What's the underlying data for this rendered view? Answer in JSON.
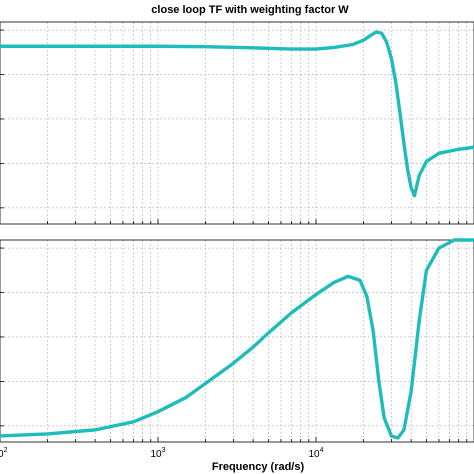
{
  "chart_data": {
    "type": "line",
    "title": "close loop TF with weighting factor W",
    "xlabel": "Frequency  (rad/s)",
    "x_scale": "log",
    "xlim": [
      100,
      100000
    ],
    "x_tick_labels": [
      {
        "value": 100,
        "base": "10",
        "exp": "2"
      },
      {
        "value": 1000,
        "base": "10",
        "exp": "3"
      },
      {
        "value": 10000,
        "base": "10",
        "exp": "4"
      }
    ],
    "grid": true,
    "line_color": "#1fbcbc",
    "panels": [
      {
        "name": "magnitude",
        "ylim": [
          0,
          1
        ],
        "y_ticks": [
          0.08,
          0.3,
          0.52,
          0.74,
          0.96
        ],
        "series": [
          {
            "x": [
              100,
              300,
              1000,
              2000,
              4000,
              7000,
              10000,
              13000,
              17000,
              20000,
              22000,
              24000,
              26000,
              28000,
              30000,
              32000,
              34000,
              36000,
              38000,
              40000,
              42000,
              45000,
              50000,
              60000,
              80000,
              100000
            ],
            "y": [
              0.88,
              0.88,
              0.88,
              0.878,
              0.872,
              0.866,
              0.866,
              0.874,
              0.888,
              0.91,
              0.932,
              0.95,
              0.945,
              0.9,
              0.82,
              0.7,
              0.55,
              0.4,
              0.27,
              0.18,
              0.14,
              0.24,
              0.31,
              0.35,
              0.37,
              0.38
            ]
          }
        ]
      },
      {
        "name": "phase",
        "ylim": [
          0,
          1
        ],
        "y_ticks": [
          0.08,
          0.3,
          0.52,
          0.74,
          0.96
        ],
        "series": [
          {
            "x": [
              100,
              200,
              400,
              700,
              1000,
              1500,
              2000,
              3000,
              4000,
              5000,
              7000,
              10000,
              13000,
              16000,
              19000,
              21000,
              23000,
              25000,
              27000,
              30000,
              33000,
              36000,
              40000,
              45000,
              50000,
              60000,
              75000,
              100000
            ],
            "y": [
              0.03,
              0.04,
              0.06,
              0.1,
              0.15,
              0.22,
              0.29,
              0.39,
              0.47,
              0.54,
              0.64,
              0.73,
              0.79,
              0.82,
              0.8,
              0.72,
              0.55,
              0.3,
              0.12,
              0.03,
              0.02,
              0.06,
              0.25,
              0.6,
              0.85,
              0.96,
              1.0,
              1.0
            ]
          }
        ]
      }
    ]
  }
}
